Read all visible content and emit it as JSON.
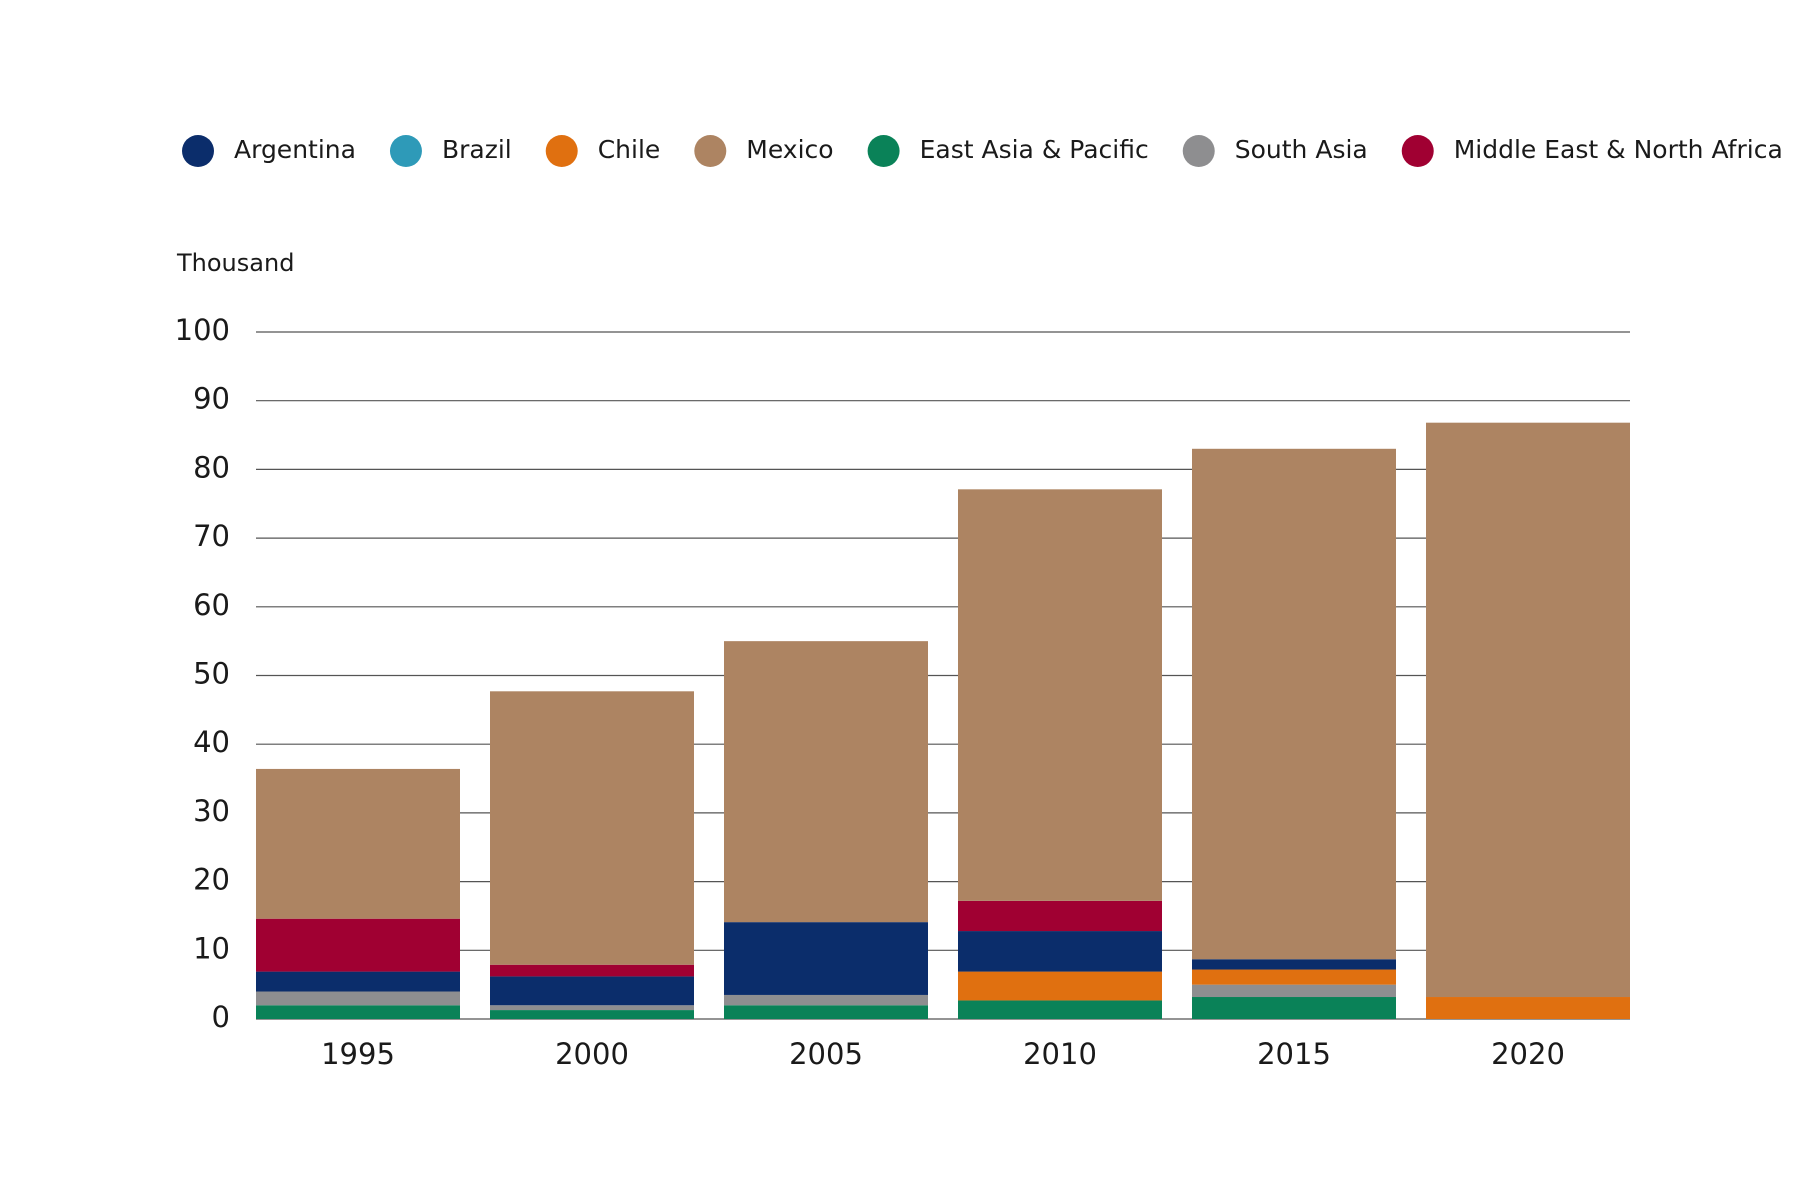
{
  "chart_data": {
    "type": "stacked_bar",
    "y_axis_label": "Thousand",
    "categories": [
      "1995",
      "2000",
      "2005",
      "2010",
      "2015",
      "2020"
    ],
    "series": [
      {
        "name": "Argentina",
        "color": "#0b2d6b",
        "values": [
          2.9,
          4.2,
          10.6,
          5.9,
          1.5,
          0
        ]
      },
      {
        "name": "Brazil",
        "color": "#2e9ab8",
        "values": [
          0,
          0,
          0,
          0,
          0,
          0
        ]
      },
      {
        "name": "Chile",
        "color": "#e07010",
        "values": [
          0,
          0,
          0,
          4.2,
          2.2,
          3.2
        ]
      },
      {
        "name": "Mexico",
        "color": "#ad8462",
        "values": [
          21.8,
          39.8,
          40.9,
          59.9,
          74.3,
          83.6
        ]
      },
      {
        "name": "East Asia & Pacific",
        "color": "#0a8258",
        "values": [
          2.0,
          1.3,
          2.0,
          2.7,
          3.2,
          0
        ]
      },
      {
        "name": "South Asia",
        "color": "#8e8e90",
        "values": [
          2.0,
          0.7,
          1.5,
          0,
          1.8,
          0
        ]
      },
      {
        "name": "Middle East & North Africa",
        "color": "#a00032",
        "values": [
          7.7,
          1.7,
          0,
          4.4,
          0,
          0
        ]
      }
    ],
    "ylim": [
      0,
      100
    ],
    "yticks": [
      0,
      10,
      20,
      30,
      40,
      50,
      60,
      70,
      80,
      90,
      100
    ],
    "grid": true
  }
}
